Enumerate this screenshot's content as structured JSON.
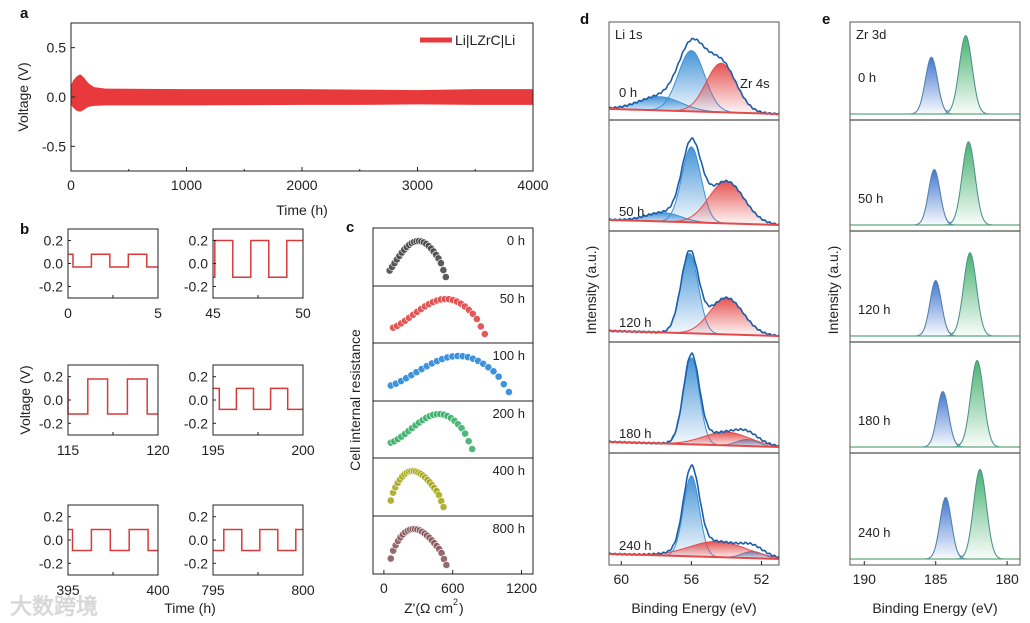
{
  "watermark": "大数跨境",
  "chart_data": [
    {
      "panel": "a",
      "type": "line",
      "xlabel": "Time (h)",
      "ylabel": "Voltage (V)",
      "xlim": [
        0,
        4000
      ],
      "ylim": [
        -0.75,
        0.75
      ],
      "xticks": [
        "0",
        "1000",
        "2000",
        "3000",
        "4000"
      ],
      "xtick_values": [
        0,
        1000,
        2000,
        3000,
        4000
      ],
      "yticks": [
        "0.5",
        "0.0",
        "-0.5"
      ],
      "ytick_values": [
        0.5,
        0,
        -0.5
      ],
      "legend": {
        "label": "Li|LZrC|Li",
        "position": "top-right"
      },
      "color": "#e8393d",
      "envelope": {
        "time": [
          0,
          20,
          50,
          80,
          110,
          150,
          200,
          300,
          1000,
          2000,
          2500,
          3000,
          3500,
          4000
        ],
        "upper": [
          0.12,
          0.17,
          0.21,
          0.23,
          0.2,
          0.14,
          0.1,
          0.085,
          0.08,
          0.08,
          0.075,
          0.07,
          0.08,
          0.08
        ],
        "lower": [
          -0.08,
          -0.11,
          -0.14,
          -0.15,
          -0.13,
          -0.1,
          -0.09,
          -0.085,
          -0.085,
          -0.08,
          -0.08,
          -0.075,
          -0.08,
          -0.08
        ]
      }
    },
    {
      "panel": "b",
      "type": "line",
      "xlabel": "Time (h)",
      "ylabel": "Voltage (V)",
      "ylim": [
        -0.3,
        0.3
      ],
      "yticks": [
        "0.2",
        "0.0",
        "-0.2"
      ],
      "ytick_values": [
        0.2,
        0,
        -0.2
      ],
      "color": "#d83a3a",
      "subplots": [
        {
          "xlim": [
            0,
            5
          ],
          "xticks": [
            "0",
            "5"
          ],
          "high": 0.08,
          "low": -0.03,
          "period": 2.05,
          "first_rise": 1.3
        },
        {
          "xlim": [
            45,
            50
          ],
          "xticks": [
            "45",
            "50"
          ],
          "high": 0.2,
          "low": -0.12,
          "period": 2.0,
          "first_rise": 45.1
        },
        {
          "xlim": [
            115,
            120
          ],
          "xticks": [
            "115",
            "120"
          ],
          "high": 0.18,
          "low": -0.12,
          "period": 2.2,
          "first_rise": 116.1
        },
        {
          "xlim": [
            195,
            200
          ],
          "xticks": [
            "195",
            "200"
          ],
          "high": 0.1,
          "low": -0.08,
          "period": 1.9,
          "first_rise": 194.4
        },
        {
          "xlim": [
            395,
            400
          ],
          "xticks": [
            "395",
            "400"
          ],
          "high": 0.09,
          "low": -0.09,
          "period": 2.1,
          "first_rise": 394.2
        },
        {
          "xlim": [
            795,
            800
          ],
          "xticks": [
            "795",
            "800"
          ],
          "high": 0.09,
          "low": -0.09,
          "period": 2.0,
          "first_rise": 795.6
        }
      ]
    },
    {
      "panel": "c",
      "type": "scatter",
      "xlabel": "Z'(Ω cm",
      "xlabel_sup": "2",
      "xlabel_end": ")",
      "ylabel": "Cell internal resistance",
      "xlim": [
        -95,
        1300
      ],
      "xticks": [
        "0",
        "600",
        "1200"
      ],
      "xtick_values": [
        0,
        600,
        1200
      ],
      "series": [
        {
          "label": "0 h",
          "x_start": 50,
          "x_end": 540,
          "peak_x": 300,
          "color": "#4a4a4a"
        },
        {
          "label": "50 h",
          "x_start": 80,
          "x_end": 880,
          "peak_x": 540,
          "color": "#e04848"
        },
        {
          "label": "100 h",
          "x_start": 60,
          "x_end": 1090,
          "peak_x": 650,
          "color": "#2a86d8"
        },
        {
          "label": "200 h",
          "x_start": 60,
          "x_end": 770,
          "peak_x": 480,
          "color": "#3bb06a"
        },
        {
          "label": "400 h",
          "x_start": 60,
          "x_end": 520,
          "peak_x": 250,
          "color": "#a8a820"
        },
        {
          "label": "800 h",
          "x_start": 60,
          "x_end": 545,
          "peak_x": 260,
          "color": "#8a5a5e"
        }
      ]
    },
    {
      "panel": "d",
      "type": "area",
      "title": "Li 1s",
      "annotation": "Zr 4s",
      "xlabel": "Binding Energy (eV)",
      "ylabel": "Intensity (a.u.)",
      "xlim": [
        60.7,
        51.0
      ],
      "xticks": [
        "60",
        "56",
        "52"
      ],
      "xtick_values": [
        60,
        56,
        52
      ],
      "colors": {
        "li": "#3b8fd6",
        "zr": "#e54a4a",
        "envelope": "#1c5ea8"
      },
      "spectra": [
        {
          "label": "0 h",
          "peaks": [
            {
              "name": "Li 1s",
              "center": 56.0,
              "height": 0.62,
              "sigma": 0.75
            },
            {
              "name": "Li 1s",
              "center": 57.8,
              "height": 0.14,
              "sigma": 1.2
            },
            {
              "name": "Zr 4s",
              "center": 54.3,
              "height": 0.5,
              "sigma": 0.85
            }
          ]
        },
        {
          "label": "50 h",
          "peaks": [
            {
              "name": "Li 1s",
              "center": 56.0,
              "height": 0.68,
              "sigma": 0.55
            },
            {
              "name": "Li 1s",
              "center": 57.6,
              "height": 0.08,
              "sigma": 1.0
            },
            {
              "name": "Zr 4s",
              "center": 54.0,
              "height": 0.38,
              "sigma": 1.0
            }
          ]
        },
        {
          "label": "120 h",
          "peaks": [
            {
              "name": "Li 1s",
              "center": 56.1,
              "height": 0.72,
              "sigma": 0.5
            },
            {
              "name": "Zr 4s",
              "center": 54.0,
              "height": 0.33,
              "sigma": 0.95
            }
          ]
        },
        {
          "label": "180 h",
          "peaks": [
            {
              "name": "Li 1s",
              "center": 56.0,
              "height": 0.78,
              "sigma": 0.45
            },
            {
              "name": "Li 1s",
              "center": 52.8,
              "height": 0.06,
              "sigma": 0.6
            },
            {
              "name": "Zr 4s",
              "center": 54.0,
              "height": 0.12,
              "sigma": 1.3
            }
          ]
        },
        {
          "label": "240 h",
          "peaks": [
            {
              "name": "Li 1s",
              "center": 56.0,
              "height": 0.72,
              "sigma": 0.45
            },
            {
              "name": "Li 1s",
              "center": 52.5,
              "height": 0.06,
              "sigma": 0.6
            },
            {
              "name": "Zr 4s",
              "center": 54.5,
              "height": 0.14,
              "sigma": 1.6
            }
          ]
        }
      ]
    },
    {
      "panel": "e",
      "type": "area",
      "title": "Zr 3d",
      "xlabel": "Binding Energy (eV)",
      "ylabel": "Intensity (a.u.)",
      "xlim": [
        191.0,
        179.1
      ],
      "xticks": [
        "190",
        "185",
        "180"
      ],
      "xtick_values": [
        190,
        185,
        180
      ],
      "colors": {
        "zr3d32": "#3a6fd0",
        "zr3d52": "#3fae6a",
        "baseline": "#5fa87e"
      },
      "spectra": [
        {
          "label": "0 h",
          "peaks": [
            {
              "center": 185.3,
              "height": 0.58,
              "sigma": 0.42
            },
            {
              "center": 182.9,
              "height": 0.8,
              "sigma": 0.45
            }
          ]
        },
        {
          "label": "50 h",
          "peaks": [
            {
              "center": 185.1,
              "height": 0.5,
              "sigma": 0.4
            },
            {
              "center": 182.7,
              "height": 0.75,
              "sigma": 0.45
            }
          ]
        },
        {
          "label": "120 h",
          "peaks": [
            {
              "center": 185.0,
              "height": 0.5,
              "sigma": 0.4
            },
            {
              "center": 182.6,
              "height": 0.75,
              "sigma": 0.45
            }
          ]
        },
        {
          "label": "180 h",
          "peaks": [
            {
              "center": 184.5,
              "height": 0.5,
              "sigma": 0.4
            },
            {
              "center": 182.1,
              "height": 0.78,
              "sigma": 0.45
            }
          ]
        },
        {
          "label": "240 h",
          "peaks": [
            {
              "center": 184.3,
              "height": 0.55,
              "sigma": 0.4
            },
            {
              "center": 181.9,
              "height": 0.8,
              "sigma": 0.45
            }
          ]
        }
      ]
    }
  ]
}
